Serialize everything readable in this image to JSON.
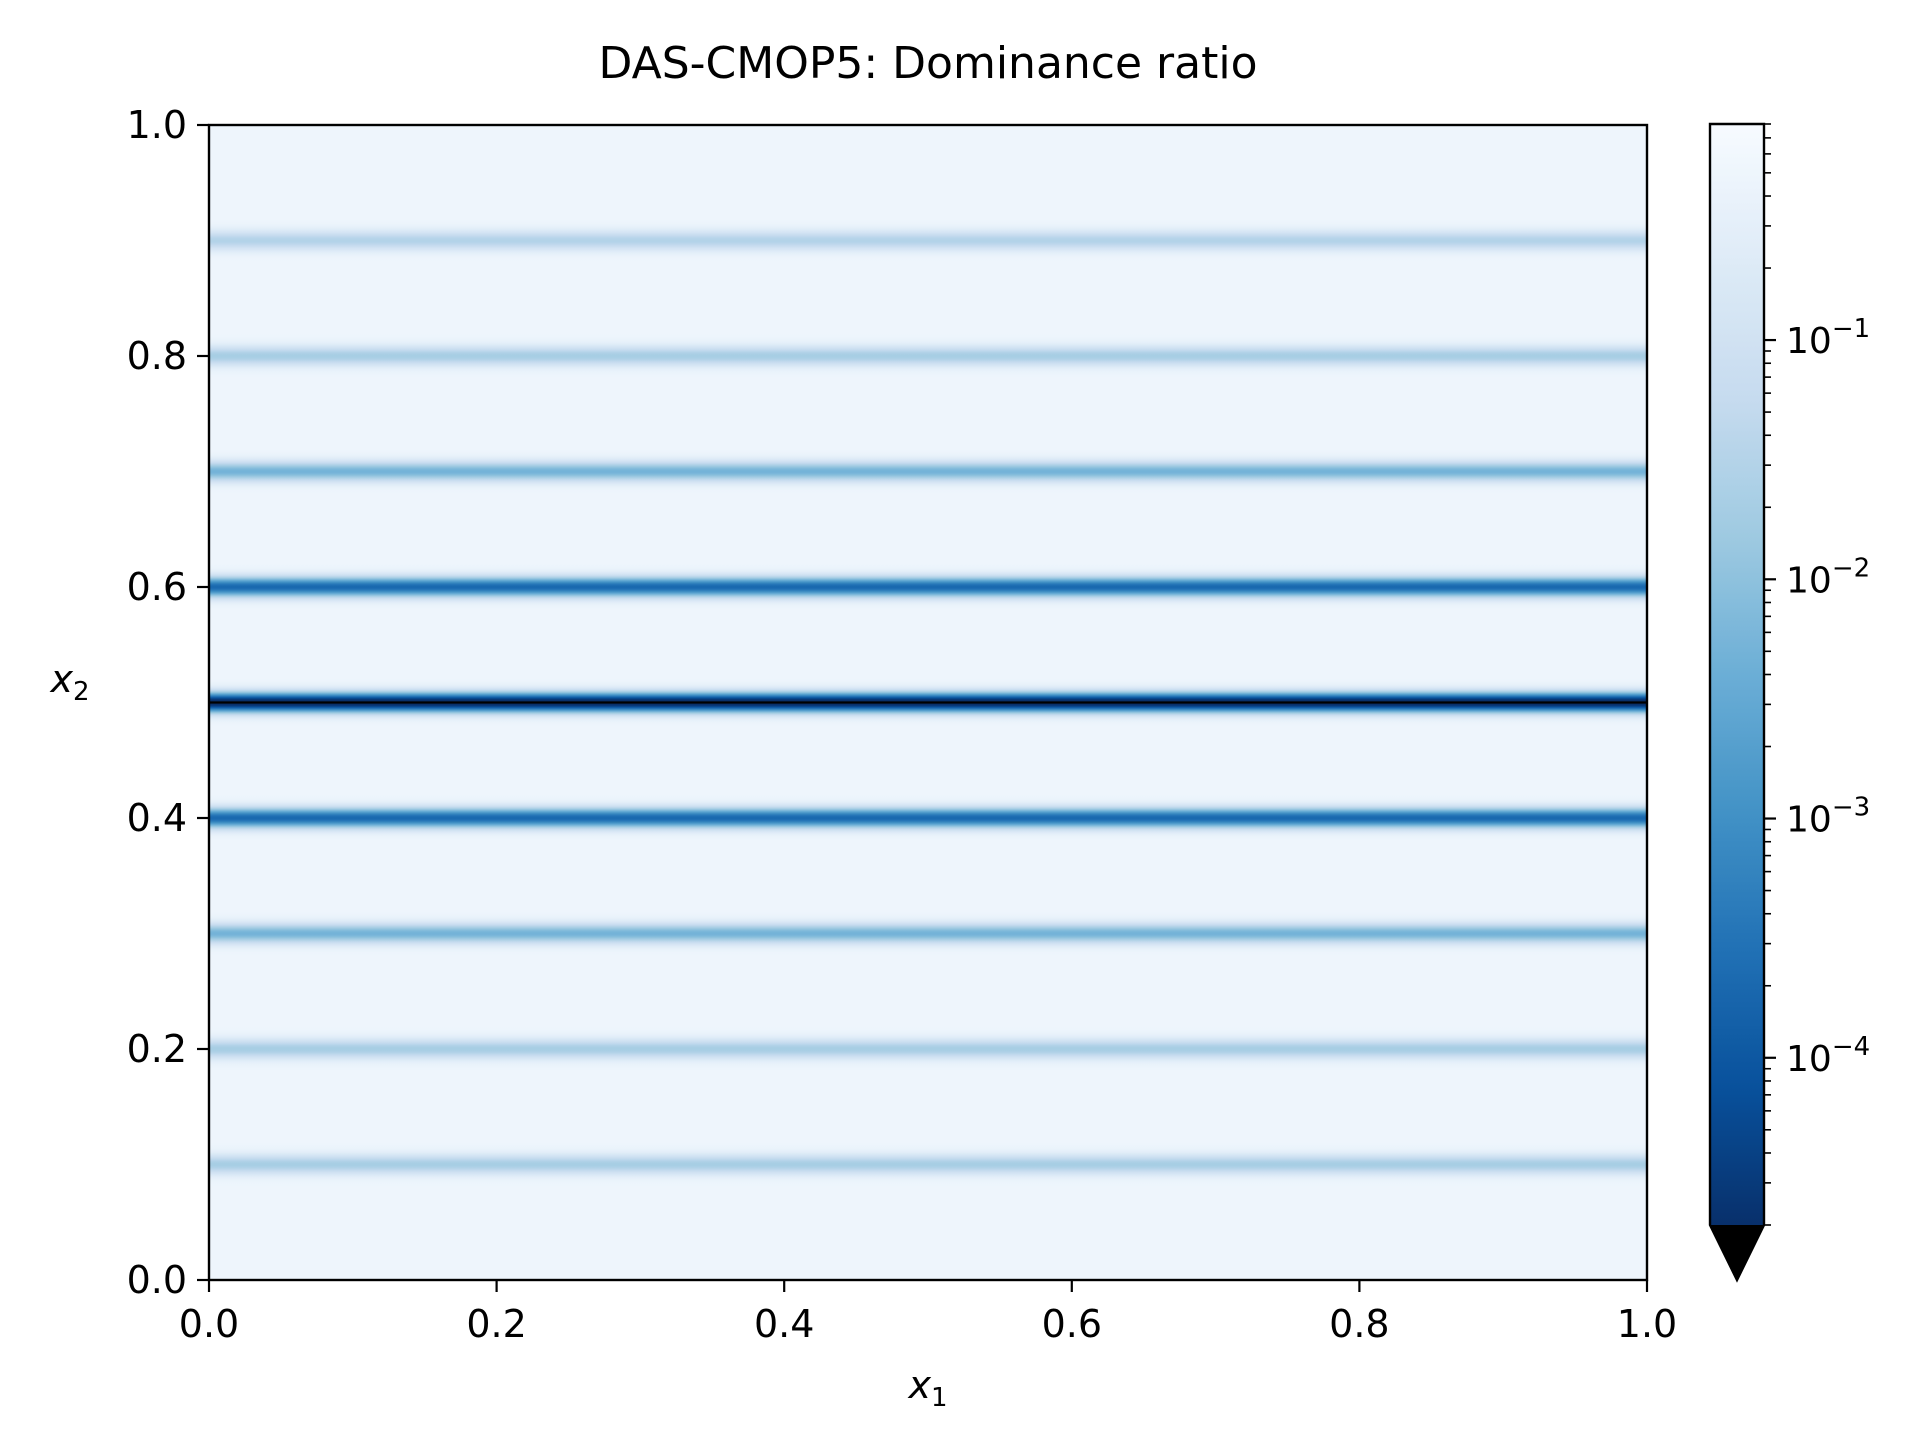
{
  "chart_data": {
    "type": "heatmap",
    "title": "DAS-CMOP5: Dominance ratio",
    "xlabel": "x1",
    "ylabel": "x2",
    "xlabel_main": "x",
    "xlabel_sub": "1",
    "ylabel_main": "x",
    "ylabel_sub": "2",
    "xlim": [
      0.0,
      1.0
    ],
    "ylim": [
      0.0,
      1.0
    ],
    "x_ticks": [
      "0.0",
      "0.2",
      "0.4",
      "0.6",
      "0.8",
      "1.0"
    ],
    "y_ticks": [
      "0.0",
      "0.2",
      "0.4",
      "0.6",
      "0.8",
      "1.0"
    ],
    "colormap": "Blues_r",
    "color_scale": "log",
    "colorbar": {
      "range": [
        2e-05,
        0.8
      ],
      "extend": "min",
      "ticks": [
        {
          "value": 0.1,
          "base": "10",
          "exp": "−1"
        },
        {
          "value": 0.01,
          "base": "10",
          "exp": "−2"
        },
        {
          "value": 0.001,
          "base": "10",
          "exp": "−3"
        },
        {
          "value": 0.0001,
          "base": "10",
          "exp": "−4"
        }
      ]
    },
    "pattern": "horizontal stripes, independent of x1",
    "stripes": [
      {
        "x2": 0.1,
        "min_value": 0.02
      },
      {
        "x2": 0.2,
        "min_value": 0.02
      },
      {
        "x2": 0.3,
        "min_value": 0.005
      },
      {
        "x2": 0.4,
        "min_value": 0.0002
      },
      {
        "x2": 0.5,
        "min_value": 1e-05
      },
      {
        "x2": 0.6,
        "min_value": 0.0002
      },
      {
        "x2": 0.7,
        "min_value": 0.005
      },
      {
        "x2": 0.8,
        "min_value": 0.02
      },
      {
        "x2": 0.9,
        "min_value": 0.03
      }
    ],
    "background_value": 0.5,
    "colors": {
      "lightest": "#e6eff9",
      "darkest": "#08306b",
      "extend_triangle": "#000000"
    }
  }
}
